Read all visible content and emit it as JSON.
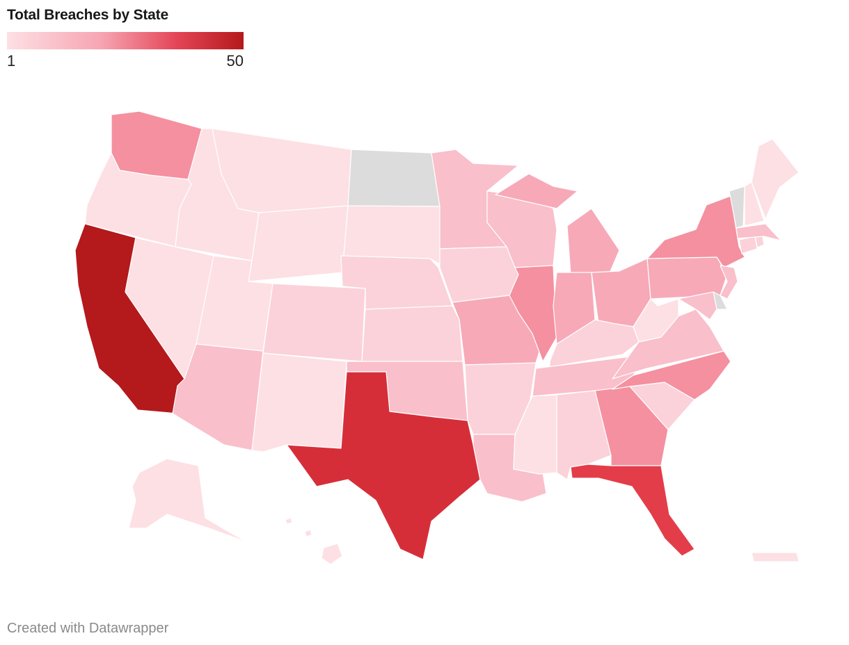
{
  "title": "Total Breaches by State",
  "legend": {
    "min_label": "1",
    "max_label": "50"
  },
  "credit": "Created with Datawrapper",
  "colors": {
    "lowest": "#fde0e4",
    "low": "#fbd2d9",
    "low_mid": "#f9bfca",
    "mid": "#f7a9b8",
    "mid_high": "#f4909f",
    "high": "#e33d4a",
    "very_high": "#d62e39",
    "highest": "#b4191c",
    "no_data": "#dcdcdc"
  },
  "states": [
    {
      "abbr": "WA",
      "level": "mid_high"
    },
    {
      "abbr": "OR",
      "level": "lowest"
    },
    {
      "abbr": "CA",
      "level": "highest"
    },
    {
      "abbr": "ID",
      "level": "lowest"
    },
    {
      "abbr": "NV",
      "level": "lowest"
    },
    {
      "abbr": "MT",
      "level": "lowest"
    },
    {
      "abbr": "WY",
      "level": "lowest"
    },
    {
      "abbr": "UT",
      "level": "lowest"
    },
    {
      "abbr": "AZ",
      "level": "low_mid"
    },
    {
      "abbr": "CO",
      "level": "low"
    },
    {
      "abbr": "NM",
      "level": "lowest"
    },
    {
      "abbr": "ND",
      "level": "no_data"
    },
    {
      "abbr": "SD",
      "level": "lowest"
    },
    {
      "abbr": "NE",
      "level": "low"
    },
    {
      "abbr": "KS",
      "level": "low"
    },
    {
      "abbr": "OK",
      "level": "low_mid"
    },
    {
      "abbr": "TX",
      "level": "very_high"
    },
    {
      "abbr": "MN",
      "level": "low_mid"
    },
    {
      "abbr": "IA",
      "level": "low"
    },
    {
      "abbr": "MO",
      "level": "mid"
    },
    {
      "abbr": "AR",
      "level": "low"
    },
    {
      "abbr": "LA",
      "level": "low_mid"
    },
    {
      "abbr": "WI",
      "level": "low_mid"
    },
    {
      "abbr": "IL",
      "level": "mid_high"
    },
    {
      "abbr": "MI",
      "level": "mid"
    },
    {
      "abbr": "IN",
      "level": "mid"
    },
    {
      "abbr": "OH",
      "level": "mid"
    },
    {
      "abbr": "KY",
      "level": "low"
    },
    {
      "abbr": "TN",
      "level": "low_mid"
    },
    {
      "abbr": "MS",
      "level": "lowest"
    },
    {
      "abbr": "AL",
      "level": "low"
    },
    {
      "abbr": "GA",
      "level": "mid_high"
    },
    {
      "abbr": "FL",
      "level": "high"
    },
    {
      "abbr": "SC",
      "level": "low"
    },
    {
      "abbr": "NC",
      "level": "mid_high"
    },
    {
      "abbr": "VA",
      "level": "low_mid"
    },
    {
      "abbr": "WV",
      "level": "lowest"
    },
    {
      "abbr": "PA",
      "level": "mid"
    },
    {
      "abbr": "NY",
      "level": "mid_high"
    },
    {
      "abbr": "VT",
      "level": "no_data"
    },
    {
      "abbr": "NH",
      "level": "lowest"
    },
    {
      "abbr": "ME",
      "level": "lowest"
    },
    {
      "abbr": "MA",
      "level": "low_mid"
    },
    {
      "abbr": "CT",
      "level": "low"
    },
    {
      "abbr": "RI",
      "level": "low"
    },
    {
      "abbr": "NJ",
      "level": "low_mid"
    },
    {
      "abbr": "DE",
      "level": "no_data"
    },
    {
      "abbr": "MD",
      "level": "low_mid"
    },
    {
      "abbr": "AK",
      "level": "lowest"
    },
    {
      "abbr": "HI",
      "level": "lowest"
    },
    {
      "abbr": "PR",
      "level": "lowest"
    }
  ]
}
